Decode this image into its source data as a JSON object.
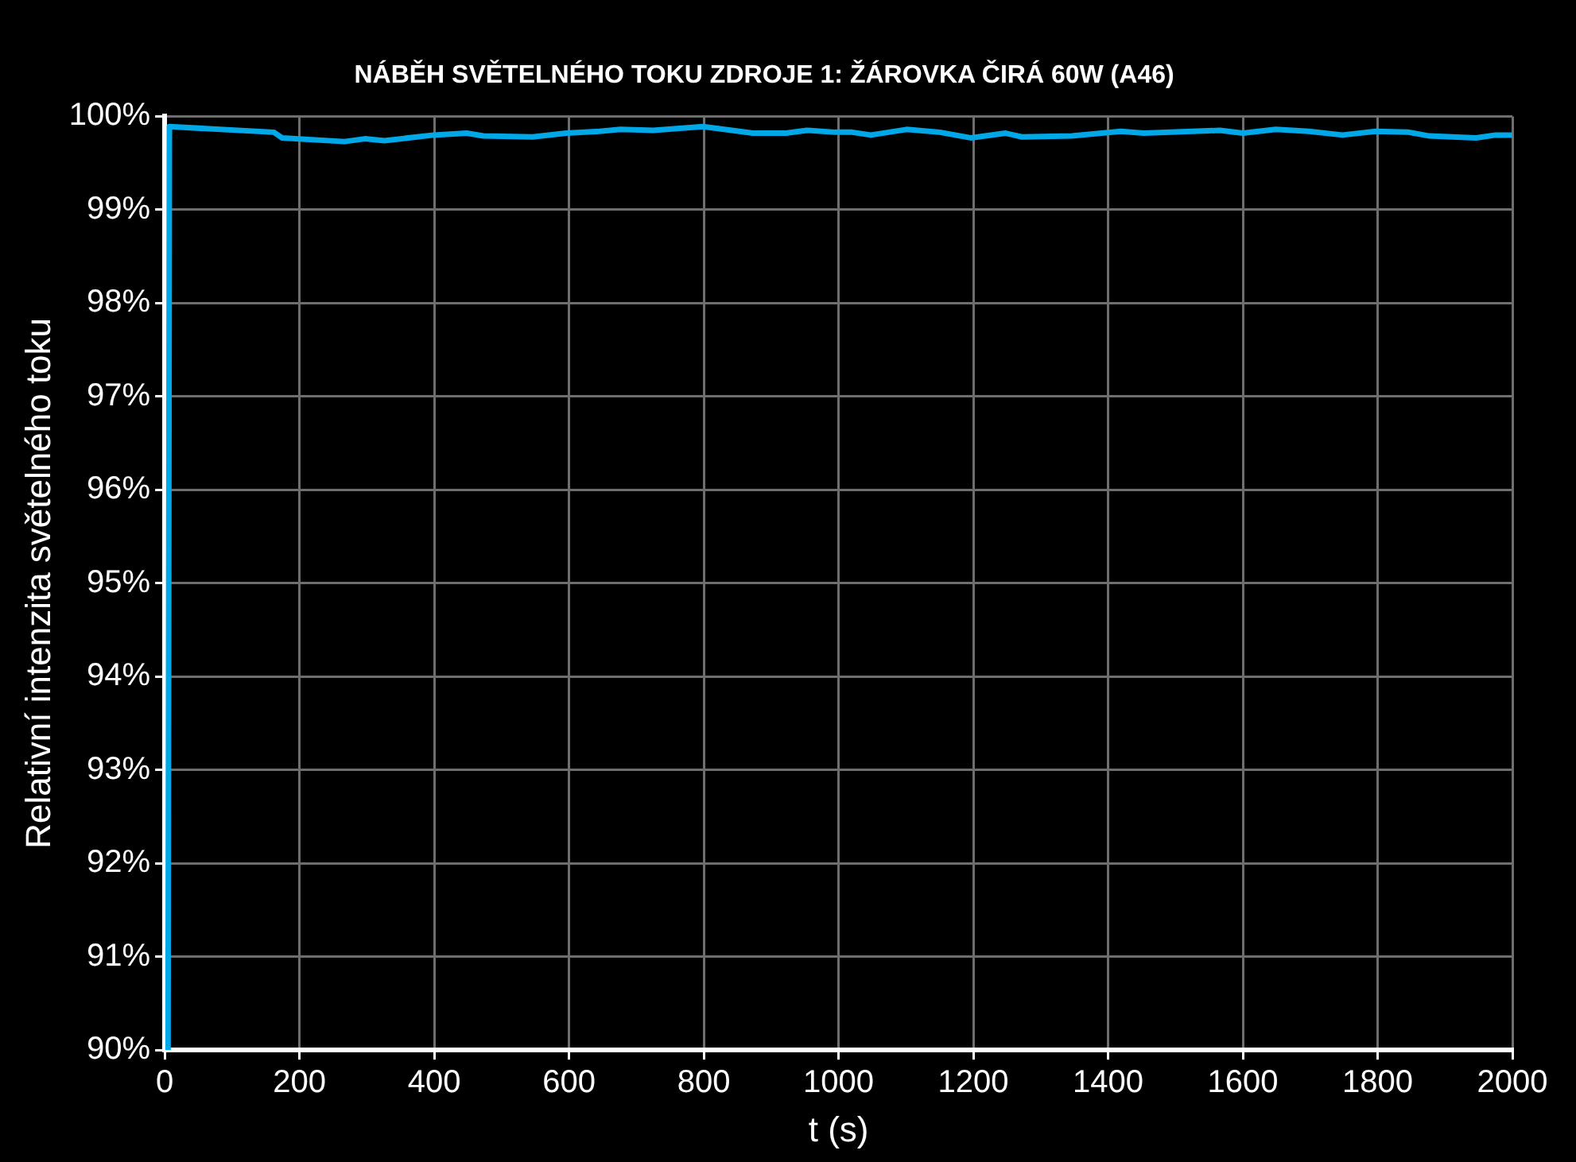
{
  "chart_data": {
    "type": "line",
    "title": "NÁBĚH SVĚTELNÉHO TOKU ZDROJE 1: ŽÁROVKA ČIRÁ 60W (A46)",
    "xlabel": "t (s)",
    "ylabel": "Relativní intenzita světelného toku",
    "series": [
      {
        "color": "#00a8e8",
        "x": [
          5,
          7,
          162,
          174,
          267,
          297,
          326,
          399,
          448,
          473,
          546,
          596,
          645,
          676,
          725,
          799,
          873,
          922,
          953,
          995,
          1020,
          1048,
          1101,
          1150,
          1196,
          1248,
          1272,
          1346,
          1419,
          1453,
          1566,
          1600,
          1649,
          1698,
          1748,
          1797,
          1846,
          1877,
          1946,
          1975,
          2000
        ],
        "values": [
          90,
          99.89,
          99.83,
          99.77,
          99.73,
          99.76,
          99.74,
          99.8,
          99.82,
          99.79,
          99.78,
          99.82,
          99.84,
          99.86,
          99.85,
          99.89,
          99.82,
          99.82,
          99.85,
          99.83,
          99.83,
          99.8,
          99.86,
          99.83,
          99.77,
          99.82,
          99.78,
          99.79,
          99.84,
          99.82,
          99.85,
          99.82,
          99.86,
          99.84,
          99.8,
          99.84,
          99.83,
          99.79,
          99.77,
          99.8,
          99.8
        ]
      }
    ],
    "xlim": [
      0,
      2000
    ],
    "xticks": [
      0,
      200,
      400,
      600,
      800,
      1000,
      1200,
      1400,
      1600,
      1800,
      2000
    ],
    "ylim": [
      90,
      100
    ],
    "yticks": [
      {
        "value": 90,
        "label": "90%"
      },
      {
        "value": 91,
        "label": "91%"
      },
      {
        "value": 92,
        "label": "92%"
      },
      {
        "value": 93,
        "label": "93%"
      },
      {
        "value": 94,
        "label": "94%"
      },
      {
        "value": 95,
        "label": "95%"
      },
      {
        "value": 96,
        "label": "96%"
      },
      {
        "value": 97,
        "label": "97%"
      },
      {
        "value": 98,
        "label": "98%"
      },
      {
        "value": 99,
        "label": "99%"
      },
      {
        "value": 100,
        "label": "100%"
      }
    ],
    "grid": true,
    "legend": false,
    "marker": "none",
    "line_style": "solid"
  }
}
